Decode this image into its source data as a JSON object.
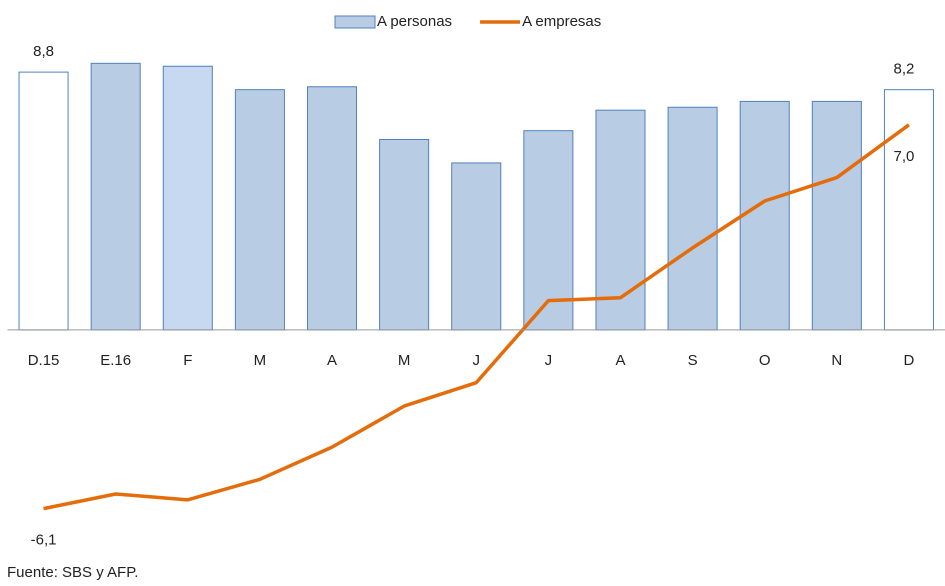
{
  "chart_data": {
    "type": "bar-line",
    "categories": [
      "D.15",
      "E.16",
      "F",
      "M",
      "A",
      "M",
      "J",
      "J",
      "A",
      "S",
      "O",
      "N",
      "D"
    ],
    "series": [
      {
        "name": "A personas",
        "type": "bar",
        "color": "#b8cce4",
        "edge_color": "#4f81bd",
        "colors": [
          "#ffffff",
          "#b8cce4",
          "#c6d9f1",
          "#b8cce4",
          "#b8cce4",
          "#b8cce4",
          "#b8cce4",
          "#b8cce4",
          "#b8cce4",
          "#b8cce4",
          "#b8cce4",
          "#b8cce4",
          "#ffffff"
        ],
        "values": [
          8.8,
          9.1,
          9.0,
          8.2,
          8.3,
          6.5,
          5.7,
          6.8,
          7.5,
          7.6,
          7.8,
          7.8,
          8.2
        ],
        "value_labels": [
          "8,8",
          null,
          null,
          null,
          null,
          null,
          null,
          null,
          null,
          null,
          null,
          null,
          "8,2"
        ]
      },
      {
        "name": "A empresas",
        "type": "line",
        "color": "#e46c0a",
        "values": [
          -6.1,
          -5.6,
          -5.8,
          -5.1,
          -4.0,
          -2.6,
          -1.8,
          1.0,
          1.1,
          2.8,
          4.4,
          5.2,
          7.0
        ],
        "value_labels": [
          "-6,1",
          null,
          null,
          null,
          null,
          null,
          null,
          null,
          null,
          null,
          null,
          null,
          "7,0"
        ]
      }
    ],
    "ylim": [
      -7,
      9.5
    ],
    "source": "Fuente: SBS y AFP."
  }
}
